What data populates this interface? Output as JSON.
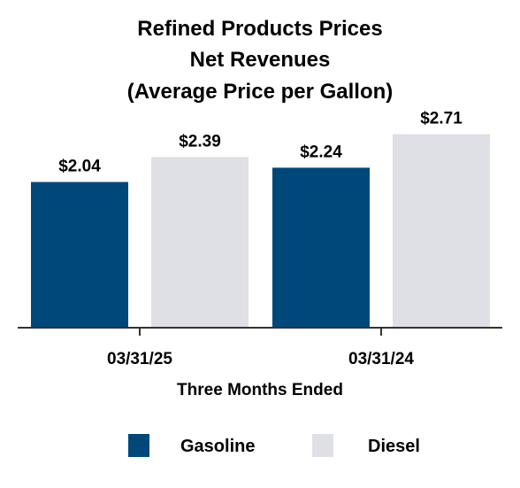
{
  "chart_data": {
    "type": "bar",
    "title": [
      "Refined Products Prices",
      "Net Revenues",
      "(Average Price per Gallon)"
    ],
    "xlabel": "Three Months Ended",
    "ylabel": "",
    "categories": [
      "03/31/25",
      "03/31/24"
    ],
    "series": [
      {
        "name": "Gasoline",
        "color": "#00487a",
        "values": [
          2.04,
          2.24
        ],
        "labels": [
          "$2.04",
          "$2.24"
        ]
      },
      {
        "name": "Diesel",
        "color": "#dfe0e5",
        "values": [
          2.39,
          2.71
        ],
        "labels": [
          "$2.39",
          "$2.71"
        ]
      }
    ],
    "ylim": [
      0,
      3.1
    ],
    "grid": false,
    "legend_position": "bottom"
  }
}
